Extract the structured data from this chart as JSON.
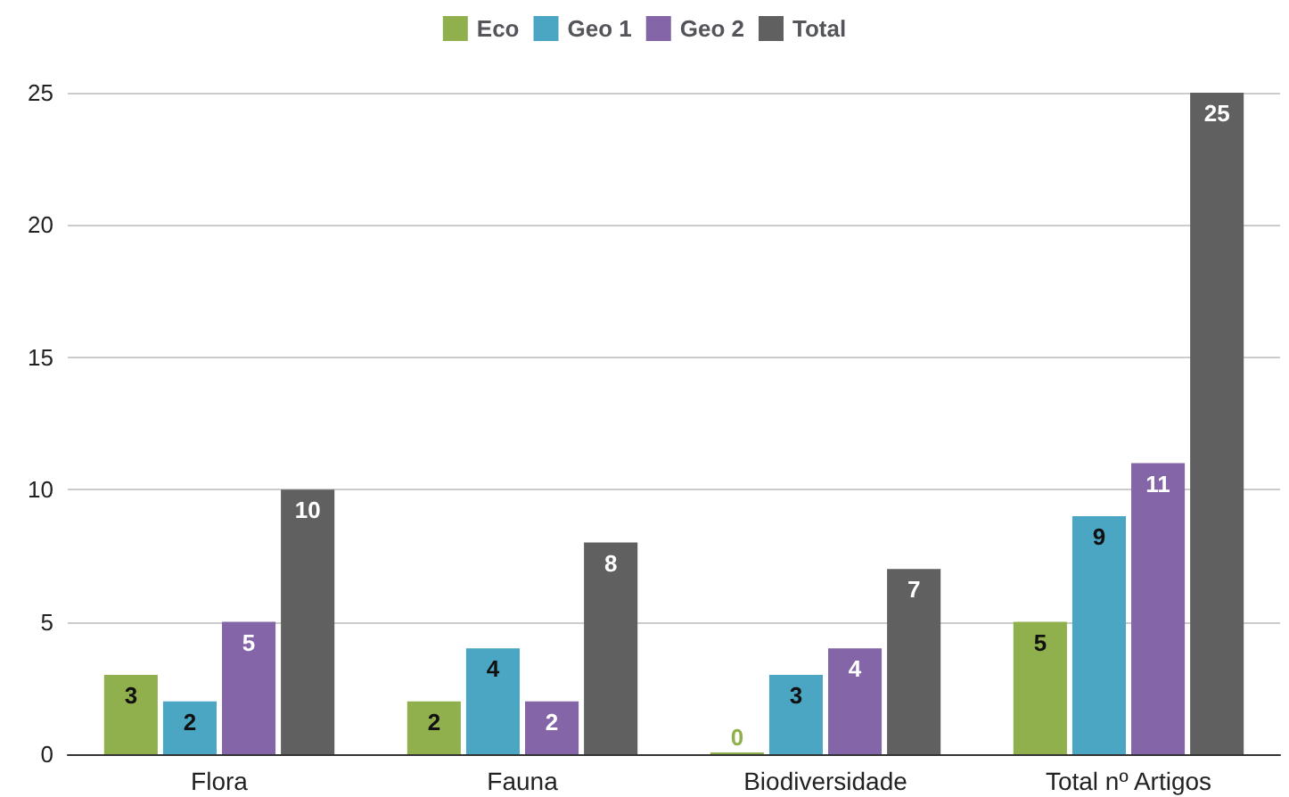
{
  "chart_data": {
    "type": "bar",
    "categories": [
      "Flora",
      "Fauna",
      "Biodiversidade",
      "Total nº Artigos"
    ],
    "series": [
      {
        "name": "Eco",
        "color": "#8fb04c",
        "values": [
          3,
          2,
          0,
          5
        ]
      },
      {
        "name": "Geo 1",
        "color": "#4aa6c2",
        "values": [
          2,
          4,
          3,
          9
        ]
      },
      {
        "name": "Geo 2",
        "color": "#8465a8",
        "values": [
          5,
          2,
          4,
          11
        ]
      },
      {
        "name": "Total",
        "color": "#606060",
        "values": [
          10,
          8,
          7,
          25
        ]
      }
    ],
    "ylim": [
      0,
      25
    ],
    "yticks": [
      0,
      5,
      10,
      15,
      20,
      25
    ],
    "grid": "y",
    "legend": "top",
    "data_labels": true
  }
}
